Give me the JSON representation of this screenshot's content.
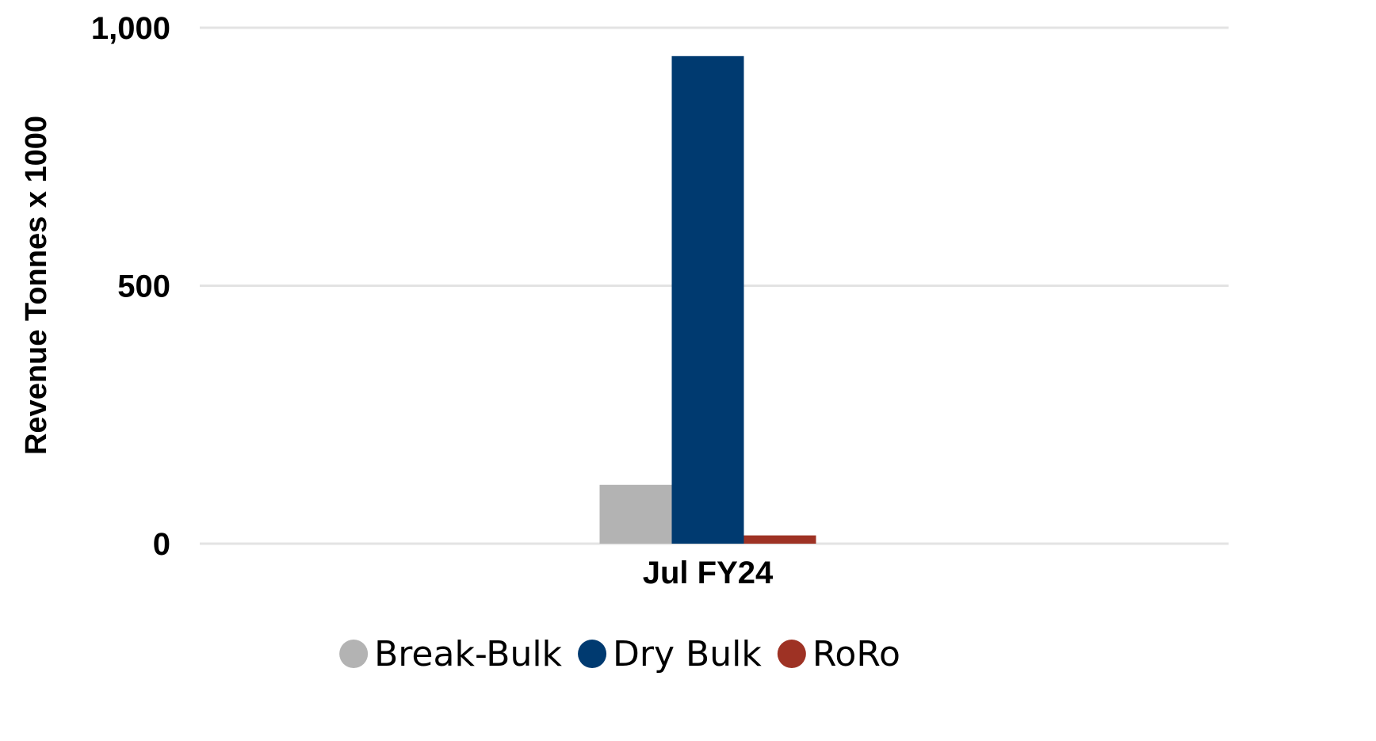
{
  "chart_data": {
    "type": "bar",
    "title": "",
    "xlabel": "",
    "ylabel": "Revenue Tonnes x 1000",
    "categories": [
      "Jul FY24"
    ],
    "series": [
      {
        "name": "Break-Bulk",
        "values": [
          114
        ],
        "color": "#b3b3b3"
      },
      {
        "name": "Dry Bulk",
        "values": [
          945
        ],
        "color": "#003a70"
      },
      {
        "name": "RoRo",
        "values": [
          16
        ],
        "color": "#9e3224"
      }
    ],
    "ylim": [
      0,
      1000
    ],
    "yticks": [
      0,
      500,
      1000
    ],
    "ytick_labels": [
      "0",
      "500",
      "1,000"
    ],
    "grid": true,
    "legend": {
      "position": "bottom"
    }
  }
}
